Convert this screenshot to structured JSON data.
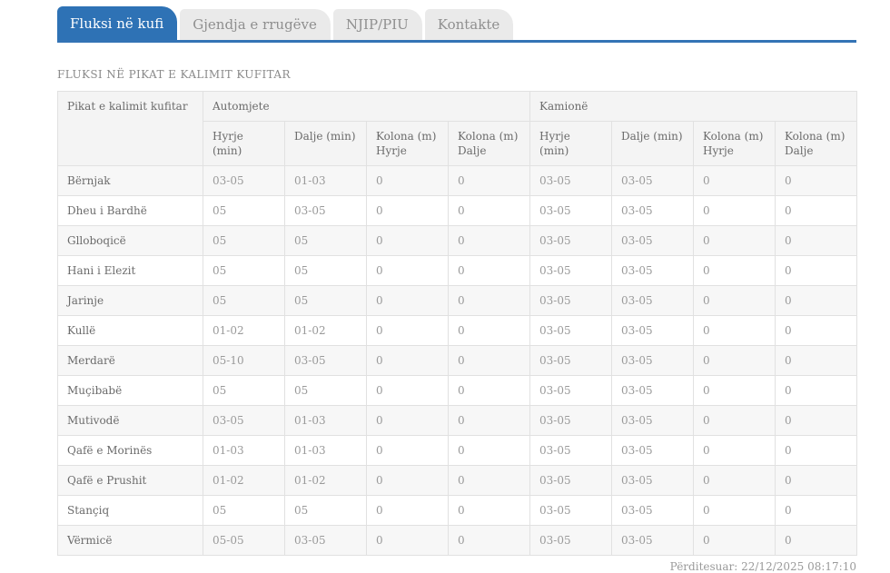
{
  "tabs": [
    {
      "id": "fluksi-ne-kufi",
      "label": "Fluksi në kufi",
      "active": true
    },
    {
      "id": "gjendja-e-rrugeve",
      "label": "Gjendja e rrugëve",
      "active": false
    },
    {
      "id": "njip-piu",
      "label": "NJIP/PIU",
      "active": false
    },
    {
      "id": "kontakte",
      "label": "Kontakte",
      "active": false
    }
  ],
  "page": {
    "title": "FLUKSI NË PIKAT E KALIMIT KUFITAR"
  },
  "table": {
    "corner_header": "Pikat e kalimit kufitar",
    "groups": [
      {
        "label": "Automjete"
      },
      {
        "label": "Kamionë"
      }
    ],
    "sub_headers": [
      "Hyrje (min)",
      "Dalje (min)",
      "Kolona (m)\nHyrje",
      "Kolona (m)\nDalje",
      "Hyrje (min)",
      "Dalje (min)",
      "Kolona (m)\nHyrje",
      "Kolona (m)\nDalje"
    ],
    "rows": [
      {
        "name": "Bërnjak",
        "values": [
          "03-05",
          "01-03",
          "0",
          "0",
          "03-05",
          "03-05",
          "0",
          "0"
        ]
      },
      {
        "name": "Dheu i Bardhë",
        "values": [
          "05",
          "03-05",
          "0",
          "0",
          "03-05",
          "03-05",
          "0",
          "0"
        ]
      },
      {
        "name": "Glloboqicë",
        "values": [
          "05",
          "05",
          "0",
          "0",
          "03-05",
          "03-05",
          "0",
          "0"
        ]
      },
      {
        "name": "Hani i Elezit",
        "values": [
          "05",
          "05",
          "0",
          "0",
          "03-05",
          "03-05",
          "0",
          "0"
        ]
      },
      {
        "name": "Jarinje",
        "values": [
          "05",
          "05",
          "0",
          "0",
          "03-05",
          "03-05",
          "0",
          "0"
        ]
      },
      {
        "name": "Kullë",
        "values": [
          "01-02",
          "01-02",
          "0",
          "0",
          "03-05",
          "03-05",
          "0",
          "0"
        ]
      },
      {
        "name": "Merdarë",
        "values": [
          "05-10",
          "03-05",
          "0",
          "0",
          "03-05",
          "03-05",
          "0",
          "0"
        ]
      },
      {
        "name": "Muçibabë",
        "values": [
          "05",
          "05",
          "0",
          "0",
          "03-05",
          "03-05",
          "0",
          "0"
        ]
      },
      {
        "name": "Mutivodë",
        "values": [
          "03-05",
          "01-03",
          "0",
          "0",
          "03-05",
          "03-05",
          "0",
          "0"
        ]
      },
      {
        "name": "Qafë e Morinës",
        "values": [
          "01-03",
          "01-03",
          "0",
          "0",
          "03-05",
          "03-05",
          "0",
          "0"
        ]
      },
      {
        "name": "Qafë e Prushit",
        "values": [
          "01-02",
          "01-02",
          "0",
          "0",
          "03-05",
          "03-05",
          "0",
          "0"
        ]
      },
      {
        "name": "Stançiq",
        "values": [
          "05",
          "05",
          "0",
          "0",
          "03-05",
          "03-05",
          "0",
          "0"
        ]
      },
      {
        "name": "Vërmicë",
        "values": [
          "05-05",
          "03-05",
          "0",
          "0",
          "03-05",
          "03-05",
          "0",
          "0"
        ]
      }
    ]
  },
  "footer": {
    "updated": "Përditesuar: 22/12/2025 08:17:10"
  },
  "colors": {
    "accent": "#2e72b5",
    "tab_inactive_bg": "#eaeaea",
    "tab_inactive_text": "#8f8f8f",
    "table_border": "#e1e1e1",
    "header_bg": "#f4f4f4",
    "stripe_bg": "#f7f7f7",
    "label_text": "#6b6b6b",
    "value_text": "#9a9a9a"
  }
}
